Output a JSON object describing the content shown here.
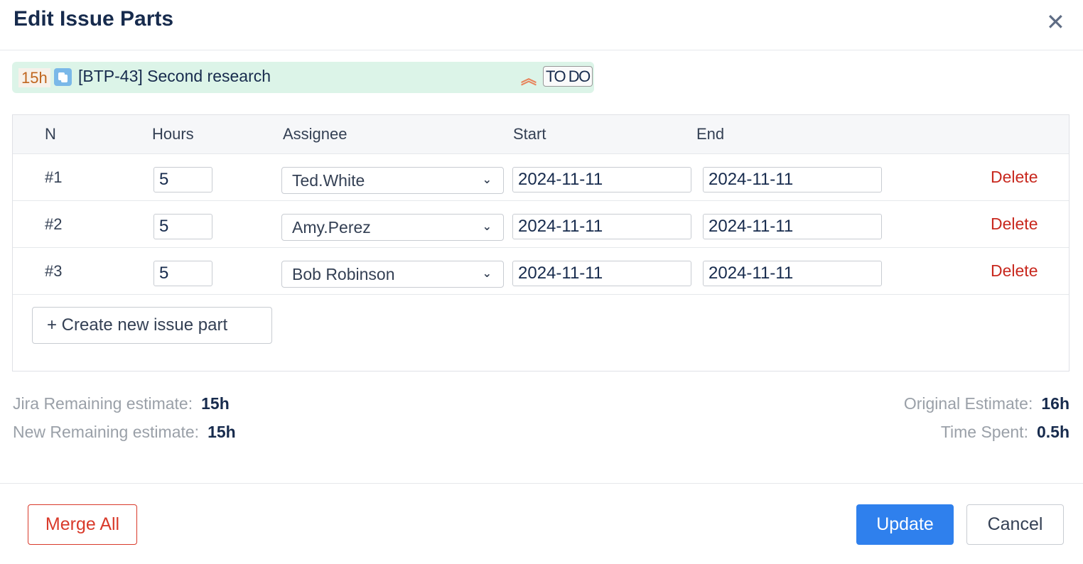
{
  "dialog": {
    "title": "Edit Issue Parts",
    "close_icon": "✕"
  },
  "issue": {
    "estimate": "15h",
    "type_icon": "subtask-icon",
    "title": "[BTP-43] Second research",
    "priority_icon": "double-chevron-up",
    "priority_glyph": "︽",
    "status": "TO DO"
  },
  "table": {
    "headers": {
      "n": "N",
      "hours": "Hours",
      "assignee": "Assignee",
      "start": "Start",
      "end": "End"
    },
    "rows": [
      {
        "n": "#1",
        "hours": "5",
        "assignee": "Ted.White",
        "start": "2024-11-11",
        "end": "2024-11-11",
        "delete": "Delete"
      },
      {
        "n": "#2",
        "hours": "5",
        "assignee": "Amy.Perez",
        "start": "2024-11-11",
        "end": "2024-11-11",
        "delete": "Delete"
      },
      {
        "n": "#3",
        "hours": "5",
        "assignee": "Bob Robinson",
        "start": "2024-11-11",
        "end": "2024-11-11",
        "delete": "Delete"
      }
    ],
    "create_label": "+  Create new issue part"
  },
  "stats": {
    "jira_remaining_label": "Jira Remaining estimate:",
    "jira_remaining": "15h",
    "new_remaining_label": "New Remaining estimate:",
    "new_remaining": "15h",
    "original_label": "Original Estimate:",
    "original": "16h",
    "spent_label": "Time Spent:",
    "spent": "0.5h"
  },
  "footer": {
    "merge": "Merge All",
    "update": "Update",
    "cancel": "Cancel"
  },
  "colors": {
    "accent": "#2f80ed",
    "danger": "#c8281e",
    "issue_bg": "#dcf4e8"
  }
}
